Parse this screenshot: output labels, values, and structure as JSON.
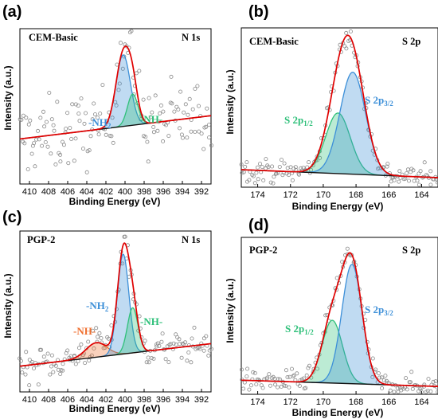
{
  "chart_data": [
    {
      "panel": "(a)",
      "type": "scatter",
      "sample": "CEM-Basic",
      "region": "N 1s",
      "xlabel": "Binding Energy (eV)",
      "ylabel": "Intensity (a.u.)",
      "xlim": [
        411,
        391
      ],
      "xticks": [
        "410",
        "408",
        "406",
        "404",
        "402",
        "400",
        "398",
        "396",
        "394",
        "392"
      ],
      "y_unit": "normalized intensity (fraction of axis height)",
      "ylim": [
        0,
        1
      ],
      "background": {
        "start": [
          411,
          0.29
        ],
        "end": [
          391,
          0.44
        ]
      },
      "peaks": [
        {
          "label": "-NH2",
          "center": 400.2,
          "sigma": 0.75,
          "height": 0.46,
          "color": "#3c8fd8"
        },
        {
          "label": "-NH-",
          "center": 399.2,
          "sigma": 0.55,
          "height": 0.2,
          "color": "#2fc07a"
        }
      ],
      "noise": 0.12,
      "colors": {
        "envelope": "#e00000",
        "background": "#111111"
      }
    },
    {
      "panel": "(b)",
      "type": "scatter",
      "sample": "CEM-Basic",
      "region": "S 2p",
      "xlabel": "Binding Energy (eV)",
      "ylabel": "Intensity (a.u.)",
      "xlim": [
        175,
        163
      ],
      "xticks": [
        "174",
        "172",
        "170",
        "168",
        "166",
        "164"
      ],
      "y_unit": "normalized intensity (fraction of axis height)",
      "ylim": [
        0,
        1
      ],
      "background": {
        "start": [
          175,
          0.11
        ],
        "end": [
          163,
          0.06
        ]
      },
      "peaks": [
        {
          "label": "S 2p1/2",
          "center": 169.1,
          "sigma": 0.75,
          "height": 0.38,
          "color": "#2fc07a"
        },
        {
          "label": "S 2p3/2",
          "center": 168.2,
          "sigma": 0.78,
          "height": 0.64,
          "color": "#3c8fd8"
        }
      ],
      "noise": 0.035,
      "colors": {
        "envelope": "#e00000",
        "background": "#111111"
      }
    },
    {
      "panel": "(c)",
      "type": "scatter",
      "sample": "PGP-2",
      "region": "N 1s",
      "xlabel": "Binding Energy (eV)",
      "ylabel": "Intensity (a.u.)",
      "xlim": [
        411,
        391
      ],
      "xticks": [
        "410",
        "408",
        "406",
        "404",
        "402",
        "400",
        "398",
        "396",
        "394",
        "392"
      ],
      "y_unit": "normalized intensity (fraction of axis height)",
      "ylim": [
        0,
        1
      ],
      "background": {
        "start": [
          411,
          0.16
        ],
        "end": [
          391,
          0.3
        ]
      },
      "peaks": [
        {
          "label": "-NH-",
          "center": 403.0,
          "sigma": 1.1,
          "height": 0.09,
          "color": "#f07030"
        },
        {
          "label": "-NH2",
          "center": 400.2,
          "sigma": 0.6,
          "height": 0.62,
          "color": "#3c8fd8"
        },
        {
          "label": "-NH-",
          "center": 399.2,
          "sigma": 0.55,
          "height": 0.28,
          "color": "#2fc07a"
        }
      ],
      "noise": 0.05,
      "colors": {
        "envelope": "#e00000",
        "background": "#111111"
      }
    },
    {
      "panel": "(d)",
      "type": "scatter",
      "sample": "PGP-2",
      "region": "S 2p",
      "xlabel": "Binding Energy (eV)",
      "ylabel": "Intensity (a.u.)",
      "xlim": [
        175,
        163
      ],
      "xticks": [
        "174",
        "172",
        "170",
        "168",
        "166",
        "164"
      ],
      "y_unit": "normalized intensity (fraction of axis height)",
      "ylim": [
        0,
        1
      ],
      "background": {
        "start": [
          175,
          0.09
        ],
        "end": [
          163,
          0.05
        ]
      },
      "peaks": [
        {
          "label": "S 2p1/2",
          "center": 169.45,
          "sigma": 0.62,
          "height": 0.4,
          "color": "#2fc07a"
        },
        {
          "label": "S 2p3/2",
          "center": 168.25,
          "sigma": 0.62,
          "height": 0.76,
          "color": "#3c8fd8"
        }
      ],
      "noise": 0.035,
      "colors": {
        "envelope": "#e00000",
        "background": "#111111"
      }
    }
  ]
}
